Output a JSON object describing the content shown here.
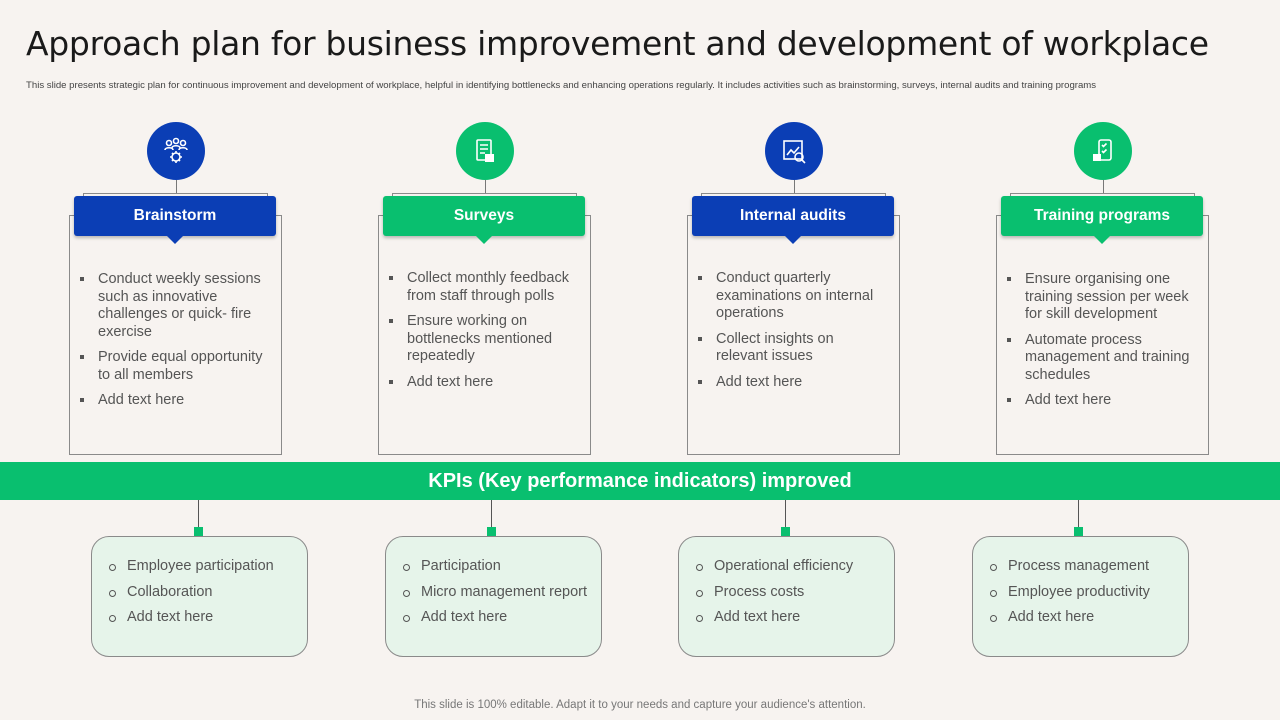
{
  "title": "Approach plan for business improvement and development of workplace",
  "subtitle": "This slide presents strategic plan for continuous improvement and development of workplace, helpful in identifying bottlenecks and enhancing operations regularly. It includes activities such as  brainstorming, surveys, internal audits and training programs",
  "columns": [
    {
      "heading": "Brainstorm",
      "icon": "team-gear-icon",
      "color": "#0b3eb5",
      "items": [
        "Conduct weekly sessions such as innovative challenges or quick- fire exercise",
        "Provide equal opportunity to all members",
        "Add text here"
      ]
    },
    {
      "heading": "Surveys",
      "icon": "survey-form-icon",
      "color": "#09bf6f",
      "items": [
        "Collect monthly feedback from staff  through polls",
        "Ensure working on bottlenecks mentioned repeatedly",
        "Add text here"
      ]
    },
    {
      "heading": "Internal audits",
      "icon": "audit-report-icon",
      "color": "#0b3eb5",
      "items": [
        "Conduct quarterly examinations on internal operations",
        "Collect insights on relevant issues",
        "Add text here"
      ]
    },
    {
      "heading": "Training programs",
      "icon": "training-clipboard-icon",
      "color": "#09bf6f",
      "items": [
        "Ensure organising one training session per week for skill development",
        "Automate process management and training schedules",
        "Add text here"
      ]
    }
  ],
  "kpi_banner": "KPIs (Key performance indicators) improved",
  "kpis": [
    [
      "Employee participation",
      "Collaboration",
      "Add text here"
    ],
    [
      "Participation",
      "Micro management report",
      "Add text here"
    ],
    [
      "Operational efficiency",
      "Process costs",
      "Add text here"
    ],
    [
      "Process management",
      "Employee productivity",
      "Add text here"
    ]
  ],
  "footer": "This slide is 100% editable. Adapt it to your needs and capture your audience's attention."
}
